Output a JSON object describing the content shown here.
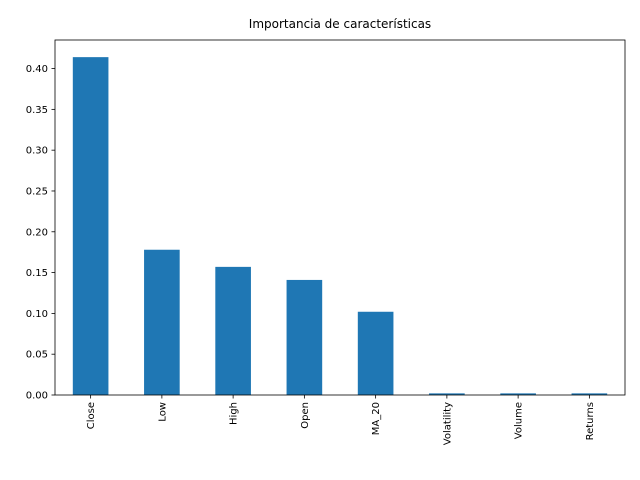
{
  "chart_data": {
    "type": "bar",
    "title": "Importancia de características",
    "xlabel": "",
    "ylabel": "",
    "categories": [
      "Close",
      "Low",
      "High",
      "Open",
      "MA_20",
      "Volatility",
      "Volume",
      "Returns"
    ],
    "values": [
      0.414,
      0.178,
      0.157,
      0.141,
      0.102,
      0.002,
      0.002,
      0.002
    ],
    "ylim": [
      0,
      0.435
    ],
    "yticks": [
      0.0,
      0.05,
      0.1,
      0.15,
      0.2,
      0.25,
      0.3,
      0.35,
      0.4
    ],
    "ytick_labels": [
      "0.00",
      "0.05",
      "0.10",
      "0.15",
      "0.20",
      "0.25",
      "0.30",
      "0.35",
      "0.40"
    ],
    "bar_color": "#1f77b4",
    "grid": false,
    "legend": "none"
  }
}
